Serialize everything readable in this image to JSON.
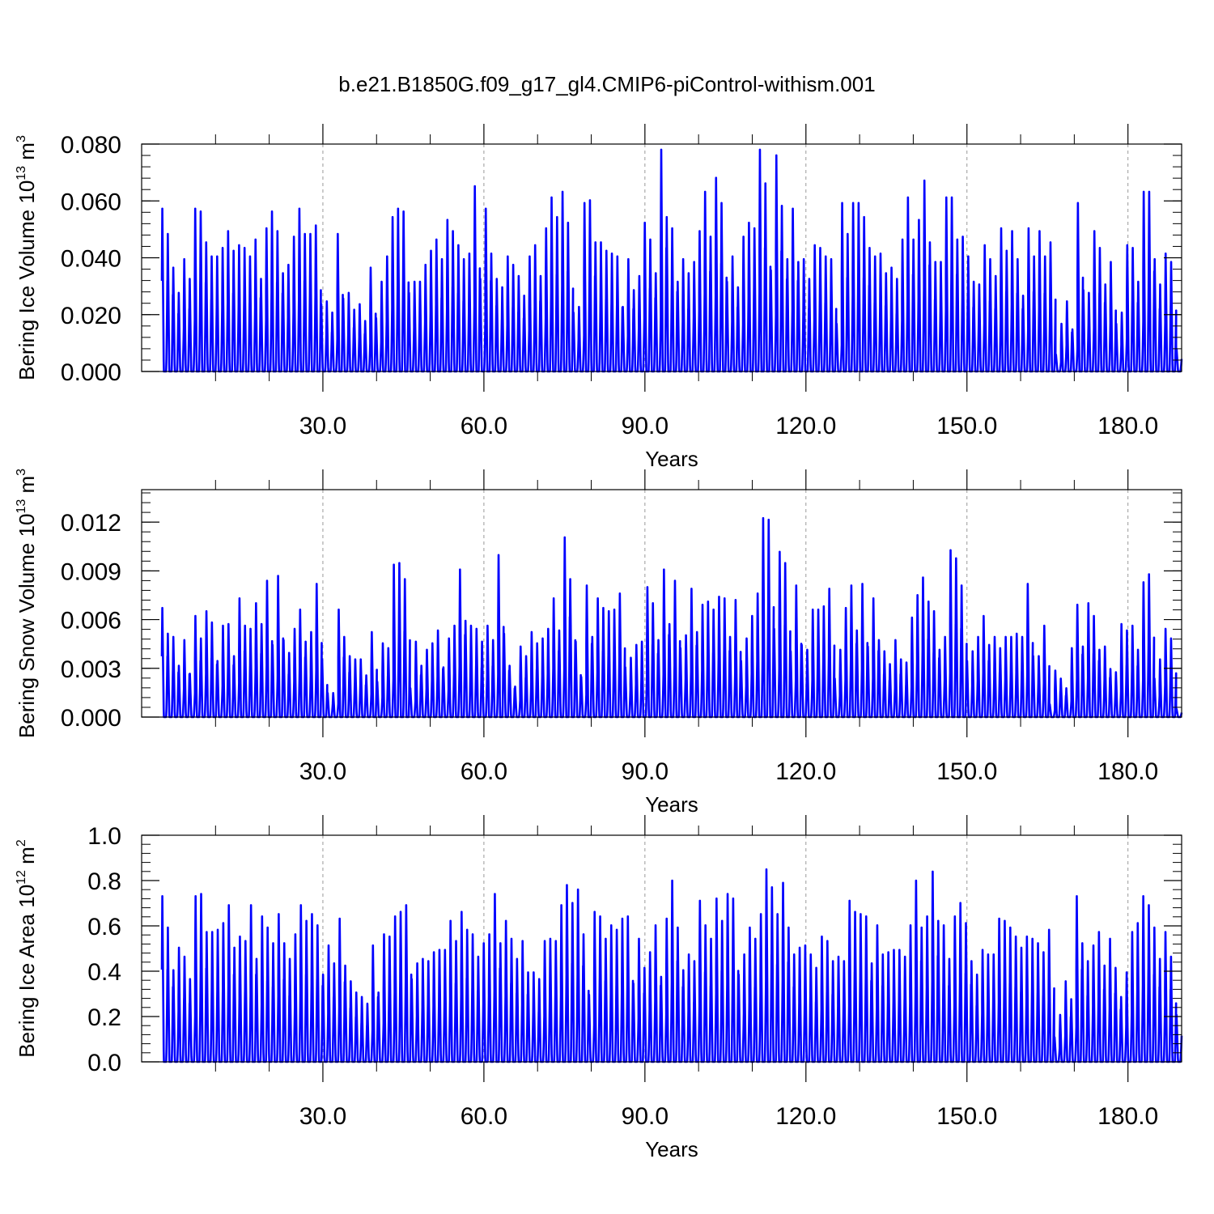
{
  "figure": {
    "title": "b.e21.B1850G.f09_g17_gl4.CMIP6-piControl-withism.001",
    "line_color": "#0000ff",
    "grid_color": "#999999"
  },
  "chart_data": [
    {
      "type": "line",
      "name": "ice-volume",
      "ylabel": {
        "text": "Bering Ice Volume 10",
        "exp": "13",
        "unit": " m",
        "unit_exp": "3"
      },
      "xlabel": "Years",
      "xlim": [
        0.0,
        190.0
      ],
      "ylim": [
        0.0,
        0.08
      ],
      "yticks": [
        0.0,
        0.02,
        0.04,
        0.06,
        0.08
      ],
      "ytick_labels": [
        "0.000",
        "0.020",
        "0.040",
        "0.060",
        "0.080"
      ],
      "xticks": [
        30.0,
        60.0,
        90.0,
        120.0,
        150.0,
        180.0
      ],
      "xtick_labels": [
        "30.0",
        "60.0",
        "90.0",
        "120.0",
        "150.0",
        "180.0"
      ],
      "grid": "vertical dashed at major x ticks",
      "annual_maxima": [
        0.058,
        0.049,
        0.037,
        0.028,
        0.04,
        0.033,
        0.058,
        0.057,
        0.046,
        0.041,
        0.041,
        0.044,
        0.05,
        0.043,
        0.045,
        0.044,
        0.041,
        0.047,
        0.033,
        0.051,
        0.057,
        0.05,
        0.035,
        0.038,
        0.048,
        0.058,
        0.049,
        0.049,
        0.052,
        0.024,
        0.025,
        0.021,
        0.049,
        0.026,
        0.028,
        0.022,
        0.024,
        0.018,
        0.037,
        0.019,
        0.032,
        0.041,
        0.055,
        0.058,
        0.057,
        0.028,
        0.032,
        0.032,
        0.038,
        0.043,
        0.047,
        0.04,
        0.054,
        0.05,
        0.045,
        0.04,
        0.042,
        0.066,
        0.033,
        0.058,
        0.042,
        0.033,
        0.03,
        0.041,
        0.038,
        0.034,
        0.027,
        0.041,
        0.045,
        0.034,
        0.051,
        0.062,
        0.055,
        0.064,
        0.053,
        0.021,
        0.023,
        0.06,
        0.061,
        0.046,
        0.046,
        0.043,
        0.042,
        0.041,
        0.023,
        0.04,
        0.029,
        0.034,
        0.053,
        0.047,
        0.035,
        0.079,
        0.055,
        0.051,
        0.032,
        0.04,
        0.035,
        0.039,
        0.05,
        0.064,
        0.048,
        0.069,
        0.06,
        0.032,
        0.041,
        0.03,
        0.048,
        0.053,
        0.051,
        0.079,
        0.067,
        0.036,
        0.077,
        0.059,
        0.04,
        0.058,
        0.039,
        0.04,
        0.033,
        0.045,
        0.044,
        0.041,
        0.04,
        0.017,
        0.06,
        0.049,
        0.06,
        0.06,
        0.055,
        0.044,
        0.041,
        0.042,
        0.035,
        0.037,
        0.033,
        0.047,
        0.062,
        0.047,
        0.054,
        0.068,
        0.046,
        0.039,
        0.039,
        0.062,
        0.062,
        0.047,
        0.048,
        0.041,
        0.032,
        0.031,
        0.045,
        0.04,
        0.034,
        0.051,
        0.043,
        0.05,
        0.04,
        0.027,
        0.051,
        0.041,
        0.05,
        0.041,
        0.046,
        0.006,
        0.017,
        0.025,
        0.015,
        0.06,
        0.029,
        0.028,
        0.05,
        0.044,
        0.031,
        0.039,
        0.017,
        0.021,
        0.045,
        0.044,
        0.032,
        0.064,
        0.064,
        0.04,
        0.031,
        0.042,
        0.039,
        0.008
      ],
      "annual_minimum": 0.0
    },
    {
      "type": "line",
      "name": "snow-volume",
      "ylabel": {
        "text": "Bering Snow Volume 10",
        "exp": "13",
        "unit": " m",
        "unit_exp": "3"
      },
      "xlabel": "Years",
      "xlim": [
        0.0,
        190.0
      ],
      "ylim": [
        0.0,
        0.014
      ],
      "yticks": [
        0.0,
        0.003,
        0.006,
        0.009,
        0.012
      ],
      "ytick_labels": [
        "0.000",
        "0.003",
        "0.006",
        "0.009",
        "0.012"
      ],
      "xticks": [
        30.0,
        60.0,
        90.0,
        120.0,
        150.0,
        180.0
      ],
      "xtick_labels": [
        "30.0",
        "60.0",
        "90.0",
        "120.0",
        "150.0",
        "180.0"
      ],
      "grid": "vertical dashed at major x ticks",
      "annual_maxima": [
        0.0068,
        0.0052,
        0.005,
        0.0032,
        0.0048,
        0.0027,
        0.0063,
        0.0049,
        0.0066,
        0.0059,
        0.0035,
        0.0057,
        0.0058,
        0.0038,
        0.0074,
        0.0057,
        0.0055,
        0.0071,
        0.0058,
        0.0085,
        0.0045,
        0.0088,
        0.0048,
        0.004,
        0.0055,
        0.0067,
        0.0047,
        0.0053,
        0.0083,
        0.0036,
        0.0015,
        0.0015,
        0.0067,
        0.005,
        0.0038,
        0.0036,
        0.0036,
        0.0026,
        0.0053,
        0.0022,
        0.0046,
        0.0043,
        0.0095,
        0.0096,
        0.0086,
        0.0018,
        0.0047,
        0.0032,
        0.0042,
        0.0046,
        0.0054,
        0.0031,
        0.0049,
        0.0057,
        0.0092,
        0.006,
        0.0057,
        0.0055,
        0.0047,
        0.0057,
        0.0048,
        0.0101,
        0.0052,
        0.0032,
        0.0019,
        0.0044,
        0.0038,
        0.0053,
        0.0046,
        0.0049,
        0.0055,
        0.0074,
        0.0054,
        0.0112,
        0.0086,
        0.0047,
        0.0025,
        0.0082,
        0.005,
        0.0074,
        0.0068,
        0.0066,
        0.0067,
        0.0077,
        0.0031,
        0.0037,
        0.0045,
        0.0047,
        0.0081,
        0.0071,
        0.0048,
        0.0092,
        0.0058,
        0.0085,
        0.0043,
        0.0051,
        0.008,
        0.0053,
        0.007,
        0.0072,
        0.0067,
        0.0075,
        0.0074,
        0.005,
        0.0073,
        0.0035,
        0.0049,
        0.0063,
        0.0077,
        0.0124,
        0.0123,
        0.0055,
        0.0103,
        0.0096,
        0.0041,
        0.0082,
        0.0045,
        0.0042,
        0.0067,
        0.0067,
        0.0069,
        0.008,
        0.0024,
        0.0042,
        0.0068,
        0.0082,
        0.0054,
        0.0083,
        0.0044,
        0.0074,
        0.0048,
        0.0041,
        0.0033,
        0.0048,
        0.0036,
        0.0034,
        0.0062,
        0.0076,
        0.0087,
        0.0072,
        0.0066,
        0.0042,
        0.005,
        0.0104,
        0.0099,
        0.0082,
        0.0035,
        0.0041,
        0.005,
        0.0063,
        0.0045,
        0.005,
        0.0043,
        0.005,
        0.005,
        0.0052,
        0.005,
        0.0083,
        0.0038,
        0.0038,
        0.0057,
        0.0008,
        0.0029,
        0.0024,
        0.0018,
        0.0043,
        0.007,
        0.0044,
        0.0071,
        0.0063,
        0.0042,
        0.0044,
        0.003,
        0.0028,
        0.0058,
        0.0054,
        0.0057,
        0.0042,
        0.0084,
        0.0089,
        0.0024,
        0.0036,
        0.0055,
        0.0049,
        0.0005
      ],
      "annual_minimum": 0.0
    },
    {
      "type": "line",
      "name": "ice-area",
      "ylabel": {
        "text": "Bering Ice Area 10",
        "exp": "12",
        "unit": " m",
        "unit_exp": "2"
      },
      "xlabel": "Years",
      "xlim": [
        0.0,
        190.0
      ],
      "ylim": [
        0.0,
        1.0
      ],
      "yticks": [
        0.0,
        0.2,
        0.4,
        0.6,
        0.8,
        1.0
      ],
      "ytick_labels": [
        "0.0",
        "0.2",
        "0.4",
        "0.6",
        "0.8",
        "1.0"
      ],
      "xticks": [
        30.0,
        60.0,
        90.0,
        120.0,
        150.0,
        180.0
      ],
      "xtick_labels": [
        "30.0",
        "60.0",
        "90.0",
        "120.0",
        "150.0",
        "180.0"
      ],
      "grid": "vertical dashed at major x ticks",
      "annual_maxima": [
        0.74,
        0.6,
        0.41,
        0.51,
        0.47,
        0.37,
        0.74,
        0.75,
        0.58,
        0.58,
        0.59,
        0.62,
        0.7,
        0.51,
        0.56,
        0.54,
        0.7,
        0.46,
        0.65,
        0.6,
        0.53,
        0.66,
        0.53,
        0.46,
        0.57,
        0.7,
        0.63,
        0.66,
        0.61,
        0.39,
        0.52,
        0.44,
        0.64,
        0.43,
        0.36,
        0.31,
        0.29,
        0.26,
        0.52,
        0.31,
        0.57,
        0.56,
        0.65,
        0.67,
        0.7,
        0.37,
        0.44,
        0.46,
        0.45,
        0.49,
        0.5,
        0.5,
        0.63,
        0.54,
        0.67,
        0.59,
        0.57,
        0.47,
        0.53,
        0.57,
        0.75,
        0.53,
        0.63,
        0.55,
        0.46,
        0.54,
        0.4,
        0.4,
        0.37,
        0.54,
        0.55,
        0.54,
        0.7,
        0.79,
        0.71,
        0.77,
        0.57,
        0.3,
        0.67,
        0.65,
        0.55,
        0.61,
        0.59,
        0.64,
        0.65,
        0.35,
        0.55,
        0.42,
        0.49,
        0.61,
        0.38,
        0.64,
        0.81,
        0.6,
        0.41,
        0.48,
        0.45,
        0.72,
        0.61,
        0.55,
        0.73,
        0.63,
        0.75,
        0.73,
        0.39,
        0.48,
        0.6,
        0.55,
        0.66,
        0.86,
        0.78,
        0.66,
        0.8,
        0.6,
        0.48,
        0.51,
        0.52,
        0.48,
        0.42,
        0.56,
        0.54,
        0.45,
        0.47,
        0.45,
        0.72,
        0.67,
        0.66,
        0.65,
        0.44,
        0.61,
        0.48,
        0.49,
        0.5,
        0.5,
        0.47,
        0.61,
        0.81,
        0.6,
        0.65,
        0.85,
        0.63,
        0.61,
        0.46,
        0.65,
        0.71,
        0.62,
        0.45,
        0.39,
        0.5,
        0.48,
        0.48,
        0.64,
        0.63,
        0.6,
        0.56,
        0.51,
        0.56,
        0.55,
        0.53,
        0.49,
        0.59,
        0.11,
        0.21,
        0.36,
        0.28,
        0.74,
        0.53,
        0.45,
        0.52,
        0.58,
        0.43,
        0.55,
        0.42,
        0.29,
        0.4,
        0.58,
        0.62,
        0.74,
        0.7,
        0.6,
        0.46,
        0.58,
        0.47,
        0.21
      ],
      "annual_minimum": 0.0
    }
  ]
}
